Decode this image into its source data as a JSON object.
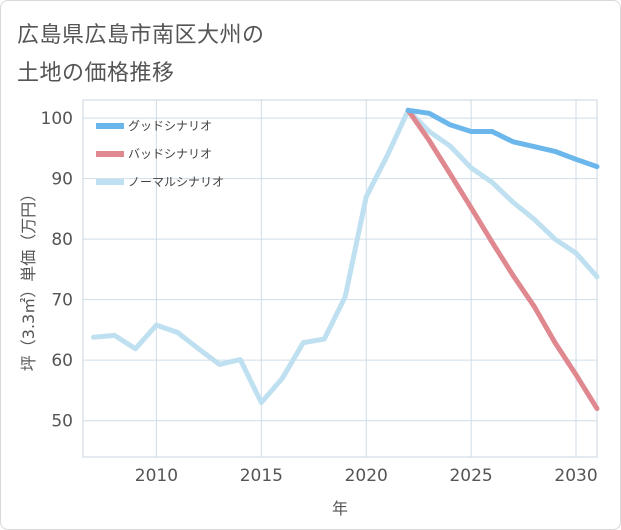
{
  "title": [
    "広島県広島市南区大州の",
    "土地の価格推移"
  ],
  "chart_data": {
    "type": "line",
    "xlabel": "年",
    "ylabel": "坪（3.3㎡）単価（万円）",
    "xlim": [
      2006.5,
      2031
    ],
    "ylim": [
      44,
      103
    ],
    "xticks": [
      2010,
      2015,
      2020,
      2025,
      2030
    ],
    "yticks": [
      50,
      60,
      70,
      80,
      90,
      100
    ],
    "grid": true,
    "legend_position": "top-left",
    "series": [
      {
        "name": "グッドシナリオ",
        "color": "#6bb6ea",
        "x": [
          2022,
          2023,
          2024,
          2025,
          2026,
          2027,
          2028,
          2029,
          2030,
          2031
        ],
        "y": [
          101.3,
          100.8,
          98.9,
          97.8,
          97.8,
          96.1,
          95.3,
          94.5,
          93.2,
          92.0
        ]
      },
      {
        "name": "バッドシナリオ",
        "color": "#e0888f",
        "x": [
          2022,
          2023,
          2024,
          2025,
          2026,
          2027,
          2028,
          2029,
          2030,
          2031
        ],
        "y": [
          101.3,
          96.3,
          90.8,
          85.2,
          79.5,
          74.0,
          68.9,
          62.9,
          57.6,
          52.0
        ]
      },
      {
        "name": "ノーマルシナリオ",
        "color": "#bfe0f0",
        "x": [
          2007,
          2008,
          2009,
          2010,
          2011,
          2012,
          2013,
          2014,
          2015,
          2016,
          2017,
          2018,
          2019,
          2020,
          2021,
          2022,
          2023,
          2024,
          2025,
          2026,
          2027,
          2028,
          2029,
          2030,
          2031
        ],
        "y": [
          63.8,
          64.1,
          61.9,
          65.8,
          64.6,
          61.9,
          59.3,
          60.1,
          53.0,
          57.0,
          62.9,
          63.5,
          70.5,
          87.0,
          93.8,
          101.3,
          97.8,
          95.4,
          91.8,
          89.4,
          86.1,
          83.3,
          80.0,
          77.7,
          73.8
        ]
      }
    ]
  }
}
